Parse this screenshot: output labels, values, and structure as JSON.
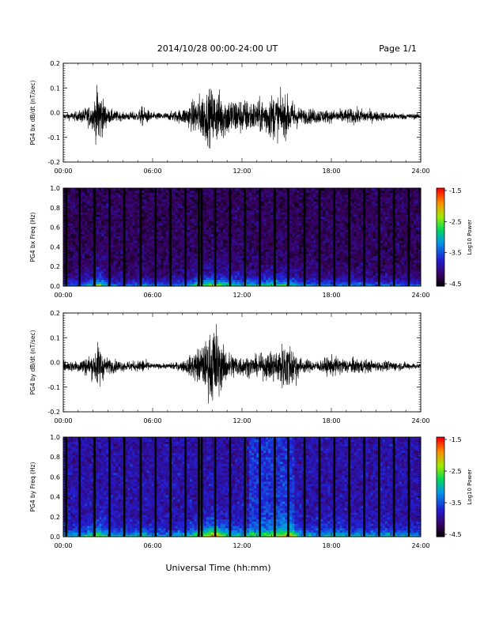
{
  "header": {
    "title": "2014/10/28  00:00-24:00 UT",
    "page_label": "Page 1/1"
  },
  "footer": {
    "xlabel": "Universal Time (hh:mm)"
  },
  "colors": {
    "trace": "#000000",
    "background": "#ffffff"
  },
  "chart_data": [
    {
      "type": "line",
      "ylabel": "PG4 bx dB/dt (nT/sec)",
      "ylim": [
        -0.2,
        0.2
      ],
      "yticks": [
        "-0.2",
        "-0.1",
        "0.0",
        "0.1",
        "0.2"
      ],
      "xticks": [
        "00:00",
        "06:00",
        "12:00",
        "18:00",
        "24:00"
      ],
      "xlim_hours": [
        0,
        24
      ],
      "activity_x_hours": [
        0,
        1,
        2,
        2.4,
        2.6,
        3,
        4,
        5,
        5.3,
        6,
        7,
        8,
        8.5,
        9,
        9.5,
        10,
        10.5,
        11,
        12,
        13,
        14,
        15,
        15.5,
        16,
        17,
        18,
        19,
        20,
        21,
        22,
        23,
        24
      ],
      "activity_amplitude": [
        0.012,
        0.02,
        0.05,
        0.14,
        0.08,
        0.03,
        0.015,
        0.02,
        0.04,
        0.015,
        0.015,
        0.03,
        0.05,
        0.08,
        0.1,
        0.11,
        0.1,
        0.08,
        0.07,
        0.06,
        0.09,
        0.08,
        0.06,
        0.03,
        0.03,
        0.025,
        0.03,
        0.03,
        0.02,
        0.015,
        0.012,
        0.01
      ]
    },
    {
      "type": "heatmap",
      "ylabel": "PG4 bx Freq (Hz)",
      "ylim": [
        0.0,
        1.0
      ],
      "yticks": [
        "0.0",
        "0.2",
        "0.4",
        "0.6",
        "0.8",
        "1.0"
      ],
      "xticks": [
        "00:00",
        "06:00",
        "12:00",
        "18:00",
        "24:00"
      ],
      "colorbar_label": "Log10 Power",
      "colorbar_ticks": [
        "-1.5",
        "-2.5",
        "-3.5",
        "-4.5"
      ],
      "clim": [
        -4.5,
        -1.5
      ],
      "data_gaps_hours": [
        0.2,
        1.1,
        2.1,
        3.1,
        4.1,
        5.2,
        6.2,
        7.2,
        8.2,
        9.1,
        9.3,
        10.2,
        11.2,
        12.2,
        13.2,
        14.2,
        15.1,
        16.2,
        17.2,
        18.2,
        19.2,
        20.2,
        21.2,
        22.2,
        23.2
      ]
    },
    {
      "type": "line",
      "ylabel": "PG4 by dB/dt (nT/sec)",
      "ylim": [
        -0.2,
        0.2
      ],
      "yticks": [
        "-0.2",
        "-0.1",
        "0.0",
        "0.1",
        "0.2"
      ],
      "xticks": [
        "00:00",
        "06:00",
        "12:00",
        "18:00",
        "24:00"
      ],
      "xlim_hours": [
        0,
        24
      ],
      "activity_x_hours": [
        0,
        1,
        2,
        2.4,
        2.6,
        3,
        4,
        5,
        5.3,
        6,
        7,
        8,
        8.5,
        9,
        9.5,
        10,
        10.2,
        10.5,
        11,
        12,
        13,
        14,
        15,
        15.5,
        16,
        17,
        18,
        19,
        20,
        21,
        22,
        23,
        24
      ],
      "activity_amplitude": [
        0.02,
        0.025,
        0.05,
        0.1,
        0.06,
        0.03,
        0.02,
        0.02,
        0.03,
        0.01,
        0.01,
        0.02,
        0.04,
        0.07,
        0.09,
        0.15,
        0.19,
        0.1,
        0.06,
        0.04,
        0.04,
        0.06,
        0.1,
        0.08,
        0.03,
        0.02,
        0.04,
        0.03,
        0.03,
        0.02,
        0.02,
        0.015,
        0.01
      ]
    },
    {
      "type": "heatmap",
      "ylabel": "PG4 by Freq (Hz)",
      "ylim": [
        0.0,
        1.0
      ],
      "yticks": [
        "0.0",
        "0.2",
        "0.4",
        "0.6",
        "0.8",
        "1.0"
      ],
      "xticks": [
        "00:00",
        "06:00",
        "12:00",
        "18:00",
        "24:00"
      ],
      "colorbar_label": "Log10 Power",
      "colorbar_ticks": [
        "-1.5",
        "-2.5",
        "-3.5",
        "-4.5"
      ],
      "clim": [
        -4.5,
        -1.5
      ],
      "data_gaps_hours": [
        0.2,
        1.1,
        2.1,
        3.1,
        4.1,
        5.2,
        6.2,
        7.2,
        8.2,
        9.1,
        9.3,
        10.2,
        11.2,
        12.2,
        13.2,
        14.2,
        15.1,
        16.2,
        17.2,
        18.2,
        19.2,
        20.2,
        21.2,
        22.2,
        23.2
      ]
    }
  ]
}
